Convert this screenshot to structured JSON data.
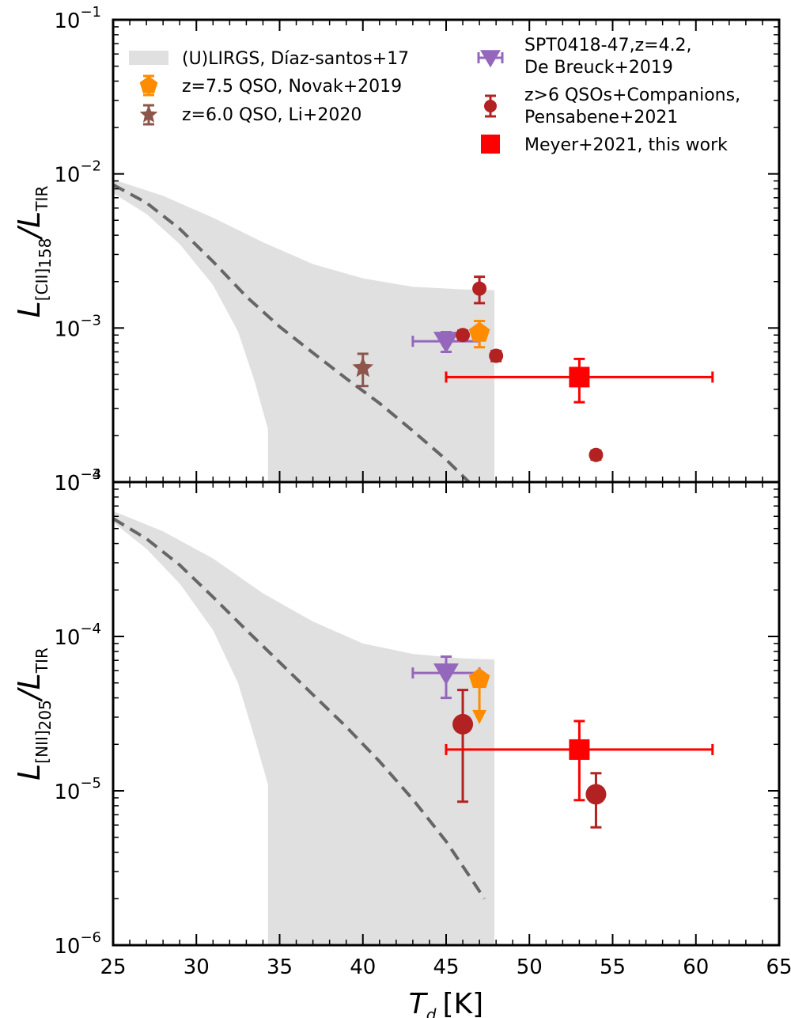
{
  "chart_data": [
    {
      "type": "scatter",
      "panel": "top",
      "ylabel": {
        "main": "L",
        "sub1": "[CII]",
        "sub2": "158",
        "mid": "/L",
        "sub3": "TIR"
      },
      "yscale": "log",
      "ylim": [
        0.0001,
        0.1
      ],
      "xlim": [
        25,
        65
      ],
      "y_ticks": [
        {
          "base": "10",
          "exp": "−4",
          "value": 0.0001
        },
        {
          "base": "10",
          "exp": "−3",
          "value": 0.001
        },
        {
          "base": "10",
          "exp": "−2",
          "value": 0.01
        },
        {
          "base": "10",
          "exp": "−1",
          "value": 0.1
        }
      ],
      "band": {
        "upper": [
          [
            25,
            0.0092
          ],
          [
            28,
            0.0072
          ],
          [
            31,
            0.0052
          ],
          [
            34,
            0.0036
          ],
          [
            37,
            0.0026
          ],
          [
            40,
            0.0021
          ],
          [
            43,
            0.00185
          ],
          [
            46,
            0.00178
          ],
          [
            47.9,
            0.00176
          ]
        ],
        "lower": [
          [
            25,
            0.0075
          ],
          [
            27,
            0.0055
          ],
          [
            29,
            0.0035
          ],
          [
            31,
            0.0019
          ],
          [
            32.5,
            0.00095
          ],
          [
            33.5,
            0.00045
          ],
          [
            34.3,
            0.00022
          ],
          [
            34.3,
            0.0001
          ],
          [
            47.9,
            0.0001
          ]
        ]
      },
      "dashed_curve": [
        [
          25,
          0.0085
        ],
        [
          27,
          0.0065
        ],
        [
          29,
          0.0044
        ],
        [
          31,
          0.0027
        ],
        [
          33,
          0.0016
        ],
        [
          35,
          0.00102
        ],
        [
          37,
          0.00069
        ],
        [
          39,
          0.00047
        ],
        [
          41,
          0.000325
        ],
        [
          43,
          0.000215
        ],
        [
          45,
          0.00014
        ],
        [
          46.5,
          9.7e-05
        ]
      ],
      "points": [
        {
          "series": "SPT0418-47,z=4.2, De Breuck+2019",
          "x": 45,
          "y": 0.00082,
          "xerr": [
            2,
            2
          ],
          "yerr": [
            0.00012,
            0.00012
          ],
          "marker": "triangle-down",
          "color": "#9467bd",
          "size": 16
        },
        {
          "series": "z=7.5 QSO, Novak+2019",
          "x": 47,
          "y": 0.00093,
          "xerr": [
            0,
            0
          ],
          "yerr": [
            0.00018,
            0.00018
          ],
          "marker": "pentagon",
          "color": "#ff8c00",
          "size": 14
        },
        {
          "series": "z=6.0 QSO, Li+2020",
          "x": 40,
          "y": 0.00055,
          "xerr": [
            0,
            0
          ],
          "yerr": [
            0.00013,
            0.00013
          ],
          "marker": "star",
          "color": "#8c564b",
          "size": 14
        },
        {
          "series": "z>6 QSOs+Companions, Pensabene+2021",
          "x": 46,
          "y": 0.0009,
          "xerr": [
            0,
            0
          ],
          "yerr": [
            6e-05,
            6e-05
          ],
          "marker": "circle",
          "color": "#b22222",
          "size": 9
        },
        {
          "series": "z>6 QSOs+Companions, Pensabene+2021",
          "x": 47,
          "y": 0.0018,
          "xerr": [
            0,
            0
          ],
          "yerr": [
            0.00035,
            0.00035
          ],
          "marker": "circle",
          "color": "#b22222",
          "size": 9
        },
        {
          "series": "z>6 QSOs+Companions, Pensabene+2021",
          "x": 48,
          "y": 0.00066,
          "xerr": [
            0,
            0
          ],
          "yerr": [
            5e-05,
            5e-05
          ],
          "marker": "circle",
          "color": "#b22222",
          "size": 9
        },
        {
          "series": "z>6 QSOs+Companions, Pensabene+2021",
          "x": 54,
          "y": 0.00015,
          "xerr": [
            0,
            0
          ],
          "yerr": [
            1e-05,
            1e-05
          ],
          "marker": "circle",
          "color": "#b22222",
          "size": 9
        },
        {
          "series": "Meyer+2021, this work",
          "x": 53,
          "y": 0.00048,
          "xerr": [
            8,
            8
          ],
          "yerr": [
            0.00015,
            0.00015
          ],
          "marker": "square",
          "color": "#ff0000",
          "size": 13
        }
      ]
    },
    {
      "type": "scatter",
      "panel": "bottom",
      "ylabel": {
        "main": "L",
        "sub1": "[NII]",
        "sub2": "205",
        "mid": "/L",
        "sub3": "TIR"
      },
      "yscale": "log",
      "ylim": [
        1e-06,
        0.001
      ],
      "xlim": [
        25,
        65
      ],
      "xlabel": "K",
      "y_ticks": [
        {
          "base": "10",
          "exp": "−6",
          "value": 1e-06
        },
        {
          "base": "10",
          "exp": "−5",
          "value": 1e-05
        },
        {
          "base": "10",
          "exp": "−4",
          "value": 0.0001
        },
        {
          "base": "10",
          "exp": "−3",
          "value": 0.001
        }
      ],
      "band": {
        "upper": [
          [
            25,
            0.00065
          ],
          [
            28,
            0.00048
          ],
          [
            31,
            0.00032
          ],
          [
            34,
            0.00019
          ],
          [
            37,
            0.000125
          ],
          [
            40,
            9e-05
          ],
          [
            43,
            7.7e-05
          ],
          [
            46,
            7.2e-05
          ],
          [
            47.9,
            7.1e-05
          ]
        ],
        "lower": [
          [
            25,
            0.00055
          ],
          [
            27,
            0.00037
          ],
          [
            29,
            0.00022
          ],
          [
            31,
            0.00011
          ],
          [
            32.5,
            5e-05
          ],
          [
            33.5,
            2.2e-05
          ],
          [
            34.3,
            1.1e-05
          ],
          [
            34.3,
            1e-06
          ],
          [
            47.9,
            1e-06
          ]
        ]
      },
      "dashed_curve": [
        [
          25,
          0.00058
        ],
        [
          27,
          0.00043
        ],
        [
          29,
          0.00029
        ],
        [
          31,
          0.00018
        ],
        [
          33,
          0.00011
        ],
        [
          35,
          6.8e-05
        ],
        [
          37,
          4.2e-05
        ],
        [
          39,
          2.6e-05
        ],
        [
          41,
          1.55e-05
        ],
        [
          43,
          8.8e-06
        ],
        [
          45,
          4.7e-06
        ],
        [
          46.5,
          2.7e-06
        ],
        [
          47.3,
          2e-06
        ]
      ],
      "points": [
        {
          "series": "SPT0418-47,z=4.2, De Breuck+2019",
          "x": 45,
          "y": 5.8e-05,
          "xerr": [
            2,
            2
          ],
          "yerr": [
            1.8e-05,
            1.6e-05
          ],
          "marker": "triangle-down",
          "color": "#9467bd",
          "size": 16
        },
        {
          "series": "z=7.5 QSO, Novak+2019",
          "x": 47,
          "y": 5.3e-05,
          "upper_limit_to": 2.9e-05,
          "xerr": [
            0,
            0
          ],
          "yerr": [
            0,
            0
          ],
          "marker": "pentagon",
          "color": "#ff8c00",
          "size": 14
        },
        {
          "series": "z>6 QSOs+Companions, Pensabene+2021",
          "x": 46,
          "y": 2.7e-05,
          "xerr": [
            0,
            0
          ],
          "yerr": [
            1.85e-05,
            1.8e-05
          ],
          "marker": "circle",
          "color": "#b22222",
          "size": 13
        },
        {
          "series": "z>6 QSOs+Companions, Pensabene+2021",
          "x": 54,
          "y": 9.5e-06,
          "xerr": [
            0,
            0
          ],
          "yerr": [
            3.7e-06,
            3.5e-06
          ],
          "marker": "circle",
          "color": "#b22222",
          "size": 13
        },
        {
          "series": "Meyer+2021, this work",
          "x": 53,
          "y": 1.85e-05,
          "xerr": [
            8,
            8
          ],
          "yerr": [
            9.8e-06,
            9.8e-06
          ],
          "marker": "square",
          "color": "#ff0000",
          "size": 13
        }
      ]
    }
  ],
  "shared": {
    "x_ticks": [
      25,
      30,
      35,
      40,
      45,
      50,
      55,
      60,
      65
    ],
    "xlabel_symbol": "T",
    "xlabel_sub": "d",
    "xlabel_unit": "[K]"
  },
  "legend": {
    "left": [
      {
        "label": "(U)LIRGS, Díaz-santos+17",
        "marker": "band",
        "color": "#e0e0e0"
      },
      {
        "label": "z=7.5 QSO, Novak+2019",
        "marker": "pentagon",
        "color": "#ff8c00"
      },
      {
        "label": "z=6.0 QSO, Li+2020",
        "marker": "star",
        "color": "#8c564b"
      }
    ],
    "right": [
      {
        "label_lines": [
          "SPT0418-47,z=4.2,",
          "De Breuck+2019"
        ],
        "marker": "triangle-down",
        "color": "#9467bd"
      },
      {
        "label_lines": [
          "z>6 QSOs+Companions,",
          "Pensabene+2021"
        ],
        "marker": "circle",
        "color": "#b22222"
      },
      {
        "label_lines": [
          "Meyer+2021, this work"
        ],
        "marker": "square",
        "color": "#ff0000"
      }
    ]
  }
}
